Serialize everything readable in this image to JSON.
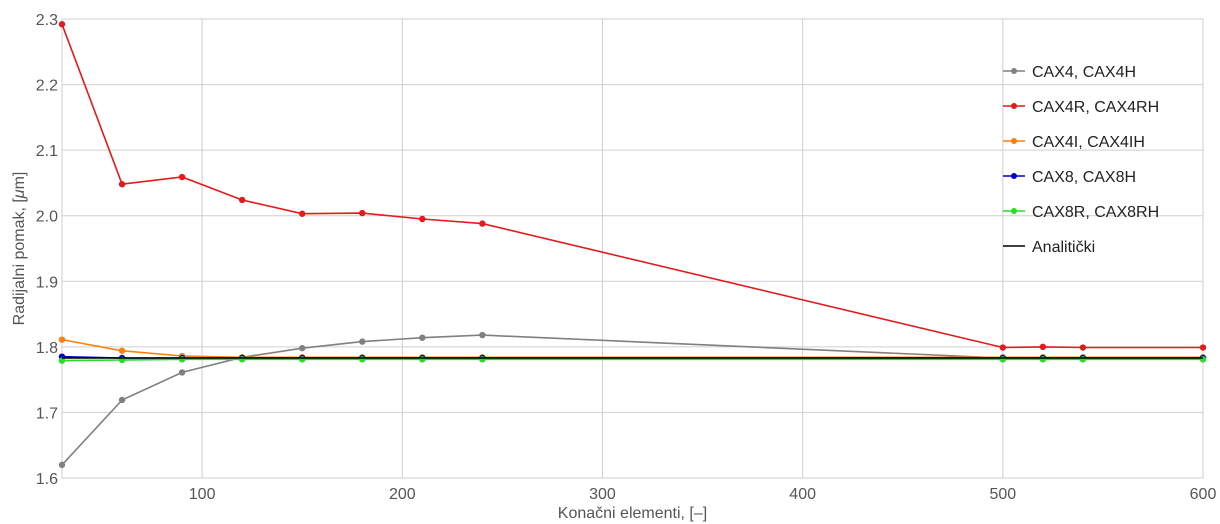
{
  "chart_data": {
    "type": "line",
    "xlabel": "Konačni elementi, [–]",
    "ylabel_prefix": "Radijalni pomak, [",
    "ylabel_unit_italic": "μ",
    "ylabel_suffix": "m]",
    "xlim": [
      30,
      600
    ],
    "ylim": [
      1.6,
      2.3
    ],
    "xticks": [
      100,
      200,
      300,
      400,
      500,
      600
    ],
    "xtick_labels": [
      "100",
      "200",
      "300",
      "400",
      "500",
      "600"
    ],
    "yticks": [
      1.6,
      1.7,
      1.8,
      1.9,
      2.0,
      2.1,
      2.2,
      2.3
    ],
    "ytick_labels": [
      "1.6",
      "1.7",
      "1.8",
      "1.9",
      "2.0",
      "2.1",
      "2.2",
      "2.3"
    ],
    "grid": true,
    "legend_position": "top-right",
    "series": [
      {
        "name": "CAX4, CAX4H",
        "color": "#808080",
        "markers": true,
        "x": [
          30,
          60,
          90,
          120,
          150,
          180,
          210,
          240,
          500,
          520,
          540,
          600
        ],
        "y": [
          1.62,
          1.719,
          1.761,
          1.784,
          1.798,
          1.808,
          1.814,
          1.818,
          1.783,
          1.783,
          1.783,
          1.783
        ]
      },
      {
        "name": "CAX4R, CAX4RH",
        "color": "#e41a1c",
        "markers": true,
        "x": [
          30,
          60,
          90,
          120,
          150,
          180,
          210,
          240,
          500,
          520,
          540,
          600
        ],
        "y": [
          2.292,
          2.048,
          2.059,
          2.024,
          2.003,
          2.004,
          1.995,
          1.988,
          1.799,
          1.8,
          1.799,
          1.799
        ]
      },
      {
        "name": "CAX4I, CAX4IH",
        "color": "#ff7f0e",
        "markers": true,
        "x": [
          30,
          60,
          90,
          120,
          150,
          180,
          210,
          240,
          500,
          520,
          540,
          600
        ],
        "y": [
          1.811,
          1.794,
          1.786,
          1.784,
          1.784,
          1.784,
          1.784,
          1.784,
          1.784,
          1.784,
          1.784,
          1.784
        ]
      },
      {
        "name": "CAX8, CAX8H",
        "color": "#0000cc",
        "markers": true,
        "x": [
          30,
          60,
          90,
          120,
          150,
          180,
          210,
          240,
          500,
          520,
          540,
          600
        ],
        "y": [
          1.785,
          1.783,
          1.783,
          1.783,
          1.783,
          1.783,
          1.783,
          1.783,
          1.783,
          1.783,
          1.783,
          1.783
        ]
      },
      {
        "name": "CAX8R, CAX8RH",
        "color": "#22e022",
        "markers": true,
        "x": [
          30,
          60,
          90,
          120,
          150,
          180,
          210,
          240,
          500,
          520,
          540,
          600
        ],
        "y": [
          1.779,
          1.78,
          1.781,
          1.781,
          1.781,
          1.781,
          1.781,
          1.781,
          1.781,
          1.781,
          1.781,
          1.781
        ]
      },
      {
        "name": "Analitički",
        "color": "#000000",
        "markers": false,
        "x": [
          30,
          600
        ],
        "y": [
          1.783,
          1.783
        ]
      }
    ]
  }
}
